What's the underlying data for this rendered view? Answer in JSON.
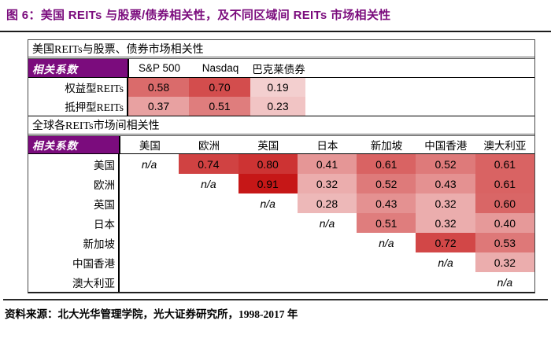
{
  "figure": {
    "title": "图 6：美国 REITs 与股票/债券相关性，及不同区域间 REITs 市场相关性",
    "source_note": "资料来源：北大光华管理学院，光大证券研究所，1998-2017 年",
    "accent": {
      "title_color": "#7B0C7D",
      "header_bg": "#7B0C7D",
      "header_text": "#FFFFFF"
    }
  },
  "heat_scale": {
    "min_value": 0,
    "max_value": 1,
    "min_color": "#FFFFFF",
    "max_color": "#C00000"
  },
  "chart_data": [
    {
      "type": "heatmap",
      "title": "美国REITs与股票、债券市场相关性",
      "corner_label": "相关系数",
      "columns": [
        "S&P 500",
        "Nasdaq",
        "巴克莱债券"
      ],
      "row_labels": [
        "权益型REITs",
        "抵押型REITs"
      ],
      "values": [
        [
          0.58,
          0.7,
          0.19
        ],
        [
          0.37,
          0.51,
          0.23
        ]
      ]
    },
    {
      "type": "heatmap",
      "title": "全球各REITs市场间相关性",
      "corner_label": "相关系数",
      "columns": [
        "美国",
        "欧洲",
        "英国",
        "日本",
        "新加坡",
        "中国香港",
        "澳大利亚"
      ],
      "row_labels": [
        "美国",
        "欧洲",
        "英国",
        "日本",
        "新加坡",
        "中国香港",
        "澳大利亚"
      ],
      "values": [
        [
          "n/a",
          0.74,
          0.8,
          0.41,
          0.61,
          0.52,
          0.61
        ],
        [
          null,
          "n/a",
          0.91,
          0.32,
          0.52,
          0.43,
          0.61
        ],
        [
          null,
          null,
          "n/a",
          0.28,
          0.43,
          0.32,
          0.6
        ],
        [
          null,
          null,
          null,
          "n/a",
          0.51,
          0.32,
          0.4
        ],
        [
          null,
          null,
          null,
          null,
          "n/a",
          0.72,
          0.53
        ],
        [
          null,
          null,
          null,
          null,
          null,
          "n/a",
          0.32
        ],
        [
          null,
          null,
          null,
          null,
          null,
          null,
          "n/a"
        ]
      ]
    }
  ]
}
